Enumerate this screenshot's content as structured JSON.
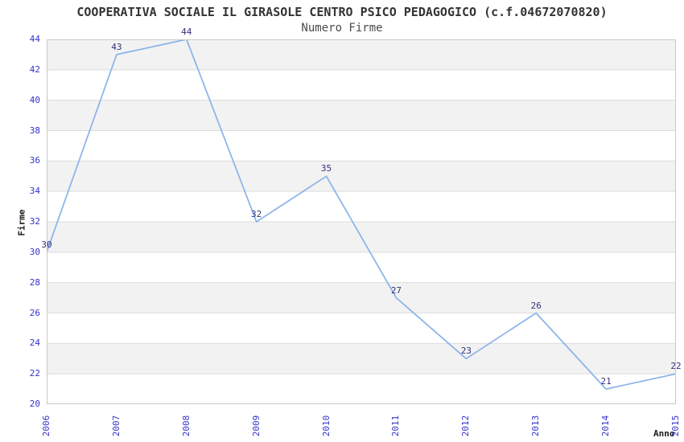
{
  "title": "COOPERATIVA SOCIALE IL GIRASOLE CENTRO PSICO PEDAGOGICO (c.f.04672070820)",
  "subtitle": "Numero Firme",
  "chart_data": {
    "type": "line",
    "title": "COOPERATIVA SOCIALE IL GIRASOLE CENTRO PSICO PEDAGOGICO (c.f.04672070820)",
    "subtitle": "Numero Firme",
    "xlabel": "Anno",
    "ylabel": "Firme",
    "x": [
      "2006",
      "2007",
      "2008",
      "2009",
      "2010",
      "2011",
      "2012",
      "2013",
      "2014",
      "2015"
    ],
    "values": [
      30,
      43,
      44,
      32,
      35,
      27,
      23,
      26,
      21,
      22
    ],
    "ylim": [
      20,
      44
    ],
    "ytick_step": 2,
    "y_ticks": [
      20,
      22,
      24,
      26,
      28,
      30,
      32,
      34,
      36,
      38,
      40,
      42,
      44
    ],
    "grid": true,
    "legend_position": "none",
    "point_labels_shown": true,
    "colors": {
      "line": "#8cb4eb",
      "tick_label": "#3232cd",
      "point_label": "#32327d",
      "band_gray": "#f2f2f2",
      "gridline": "#dcdcdc",
      "plot_border": "#c9c9c9",
      "title": "#333333",
      "axis_title": "#1a1a1a",
      "background": "#ffffff"
    }
  }
}
